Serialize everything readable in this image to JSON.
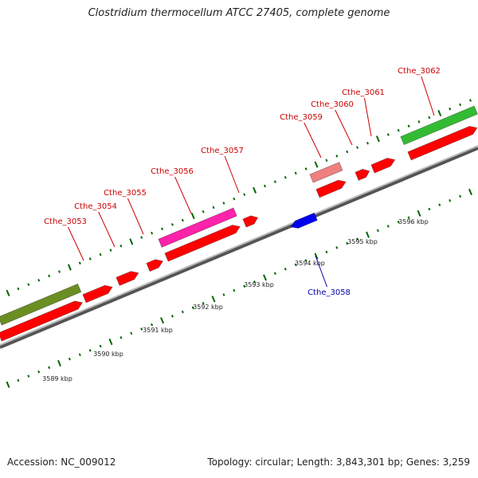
{
  "title": "Clostridium thermocellum ATCC 27405, complete genome",
  "footer": {
    "accession": "Accession: NC_009012",
    "stats": "Topology: circular; Length: 3,843,301 bp; Genes: 3,259"
  },
  "colors": {
    "cds": "#ff0000",
    "cds_dark": "#b00000",
    "magenta": "#ff22aa",
    "pink": "#f08080",
    "green": "#33bb33",
    "olive": "#6b8e23",
    "blue": "#0000ee",
    "label_red": "#cc0000",
    "label_blue": "#0000aa",
    "tick_green": "#006600"
  },
  "scale_ticks": [
    "3589 kbp",
    "3590 kbp",
    "3591 kbp",
    "3592 kbp",
    "3593 kbp",
    "3594 kbp",
    "3595 kbp",
    "3596 kbp"
  ],
  "gene_labels": [
    {
      "name": "Cthe_3053",
      "strand": "forward"
    },
    {
      "name": "Cthe_3054",
      "strand": "forward"
    },
    {
      "name": "Cthe_3055",
      "strand": "forward"
    },
    {
      "name": "Cthe_3056",
      "strand": "forward"
    },
    {
      "name": "Cthe_3057",
      "strand": "forward"
    },
    {
      "name": "Cthe_3058",
      "strand": "reverse"
    },
    {
      "name": "Cthe_3059",
      "strand": "forward"
    },
    {
      "name": "Cthe_3060",
      "strand": "forward"
    },
    {
      "name": "Cthe_3061",
      "strand": "forward"
    },
    {
      "name": "Cthe_3062",
      "strand": "forward"
    }
  ]
}
